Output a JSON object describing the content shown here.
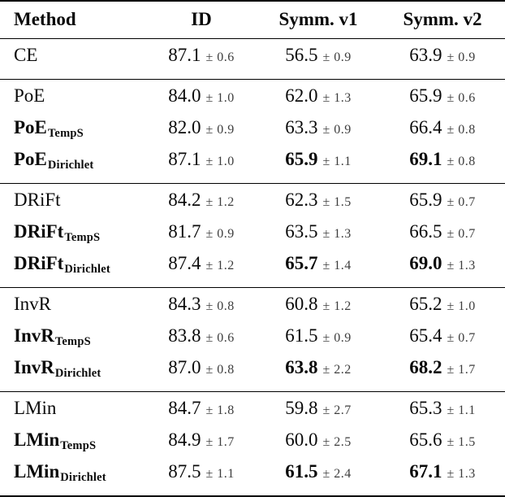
{
  "table": {
    "headers": [
      {
        "label": "Method"
      },
      {
        "label": "ID"
      },
      {
        "label": "Symm. v1"
      },
      {
        "label": "Symm. v2"
      }
    ],
    "colors": {
      "text": "#0a0a0a",
      "pm_text": "#3d3d3d",
      "rule": "#000000",
      "background": "#ffffff"
    },
    "groups": [
      {
        "rows": [
          {
            "m": "CE",
            "sub": "",
            "mw": "reg",
            "c": [
              {
                "v": "87.1",
                "e": "± 0.6",
                "w": "reg"
              },
              {
                "v": "56.5",
                "e": "± 0.9",
                "w": "reg"
              },
              {
                "v": "63.9",
                "e": "± 0.9",
                "w": "reg"
              }
            ]
          }
        ]
      },
      {
        "rows": [
          {
            "m": "PoE",
            "sub": "",
            "mw": "reg",
            "c": [
              {
                "v": "84.0",
                "e": "± 1.0",
                "w": "reg"
              },
              {
                "v": "62.0",
                "e": "± 1.3",
                "w": "reg"
              },
              {
                "v": "65.9",
                "e": "± 0.6",
                "w": "reg"
              }
            ]
          },
          {
            "m": "PoE",
            "sub": "TempS",
            "mw": "bold",
            "c": [
              {
                "v": "82.0",
                "e": "± 0.9",
                "w": "reg"
              },
              {
                "v": "63.3",
                "e": "± 0.9",
                "w": "reg"
              },
              {
                "v": "66.4",
                "e": "± 0.8",
                "w": "reg"
              }
            ]
          },
          {
            "m": "PoE",
            "sub": "Dirichlet",
            "mw": "bold",
            "c": [
              {
                "v": "87.1",
                "e": "± 1.0",
                "w": "reg"
              },
              {
                "v": "65.9",
                "e": "± 1.1",
                "w": "bold"
              },
              {
                "v": "69.1",
                "e": "± 0.8",
                "w": "bold"
              }
            ]
          }
        ]
      },
      {
        "rows": [
          {
            "m": "DRiFt",
            "sub": "",
            "mw": "reg",
            "c": [
              {
                "v": "84.2",
                "e": "± 1.2",
                "w": "reg"
              },
              {
                "v": "62.3",
                "e": "± 1.5",
                "w": "reg"
              },
              {
                "v": "65.9",
                "e": "± 0.7",
                "w": "reg"
              }
            ]
          },
          {
            "m": "DRiFt",
            "sub": "TempS",
            "mw": "bold",
            "c": [
              {
                "v": "81.7",
                "e": "± 0.9",
                "w": "reg"
              },
              {
                "v": "63.5",
                "e": "± 1.3",
                "w": "reg"
              },
              {
                "v": "66.5",
                "e": "± 0.7",
                "w": "reg"
              }
            ]
          },
          {
            "m": "DRiFt",
            "sub": "Dirichlet",
            "mw": "bold",
            "c": [
              {
                "v": "87.4",
                "e": "± 1.2",
                "w": "reg"
              },
              {
                "v": "65.7",
                "e": "± 1.4",
                "w": "bold"
              },
              {
                "v": "69.0",
                "e": "± 1.3",
                "w": "bold"
              }
            ]
          }
        ]
      },
      {
        "rows": [
          {
            "m": "InvR",
            "sub": "",
            "mw": "reg",
            "c": [
              {
                "v": "84.3",
                "e": "± 0.8",
                "w": "reg"
              },
              {
                "v": "60.8",
                "e": "± 1.2",
                "w": "reg"
              },
              {
                "v": "65.2",
                "e": "± 1.0",
                "w": "reg"
              }
            ]
          },
          {
            "m": "InvR",
            "sub": "TempS",
            "mw": "bold",
            "c": [
              {
                "v": "83.8",
                "e": "± 0.6",
                "w": "reg"
              },
              {
                "v": "61.5",
                "e": "± 0.9",
                "w": "reg"
              },
              {
                "v": "65.4",
                "e": "± 0.7",
                "w": "reg"
              }
            ]
          },
          {
            "m": "InvR",
            "sub": "Dirichlet",
            "mw": "bold",
            "c": [
              {
                "v": "87.0",
                "e": "± 0.8",
                "w": "reg"
              },
              {
                "v": "63.8",
                "e": "± 2.2",
                "w": "bold"
              },
              {
                "v": "68.2",
                "e": "± 1.7",
                "w": "bold"
              }
            ]
          }
        ]
      },
      {
        "rows": [
          {
            "m": "LMin",
            "sub": "",
            "mw": "reg",
            "c": [
              {
                "v": "84.7",
                "e": "± 1.8",
                "w": "reg"
              },
              {
                "v": "59.8",
                "e": "± 2.7",
                "w": "reg"
              },
              {
                "v": "65.3",
                "e": "± 1.1",
                "w": "reg"
              }
            ]
          },
          {
            "m": "LMin",
            "sub": "TempS",
            "mw": "bold",
            "c": [
              {
                "v": "84.9",
                "e": "± 1.7",
                "w": "reg"
              },
              {
                "v": "60.0",
                "e": "± 2.5",
                "w": "reg"
              },
              {
                "v": "65.6",
                "e": "± 1.5",
                "w": "reg"
              }
            ]
          },
          {
            "m": "LMin",
            "sub": "Dirichlet",
            "mw": "bold",
            "c": [
              {
                "v": "87.5",
                "e": "± 1.1",
                "w": "reg"
              },
              {
                "v": "61.5",
                "e": "± 2.4",
                "w": "bold"
              },
              {
                "v": "67.1",
                "e": "± 1.3",
                "w": "bold"
              }
            ]
          }
        ]
      }
    ]
  }
}
